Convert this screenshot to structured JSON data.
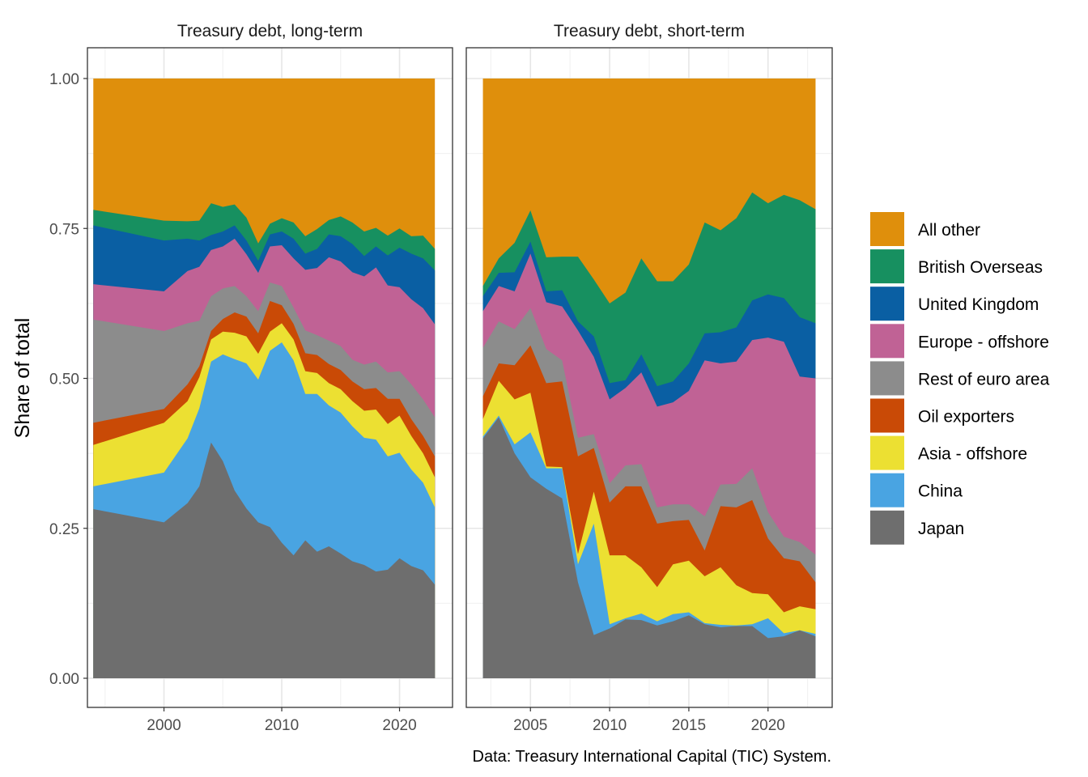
{
  "chart_data": {
    "type": "area",
    "stacked": true,
    "ylabel": "Share of total",
    "xlabel": "",
    "caption": "Data: Treasury International Capital (TIC) System.",
    "legend_position": "right",
    "series_order": [
      "Japan",
      "China",
      "Asia - offshore",
      "Oil exporters",
      "Rest of euro area",
      "Europe - offshore",
      "United Kingdom",
      "British Overseas",
      "All other"
    ],
    "legend_order": [
      "All other",
      "British Overseas",
      "United Kingdom",
      "Europe - offshore",
      "Rest of euro area",
      "Oil exporters",
      "Asia - offshore",
      "China",
      "Japan"
    ],
    "colors": {
      "Japan": "#6e6e6e",
      "China": "#49a4e2",
      "Asia - offshore": "#ece032",
      "Oil exporters": "#c94a06",
      "Rest of euro area": "#8c8c8c",
      "Europe - offshore": "#c06295",
      "United Kingdom": "#0a5fa3",
      "British Overseas": "#179060",
      "All other": "#df8f0c"
    },
    "ylim": [
      0,
      1
    ],
    "yticks": [
      "0.00",
      "0.25",
      "0.50",
      "0.75",
      "1.00"
    ],
    "panels": [
      {
        "title": "Treasury debt, long-term",
        "xlim": [
          1993.5,
          2024.5
        ],
        "xticks": [
          2000,
          2010,
          2020
        ],
        "x": [
          1994,
          2000,
          2002,
          2003,
          2004,
          2005,
          2006,
          2007,
          2008,
          2009,
          2010,
          2011,
          2012,
          2013,
          2014,
          2015,
          2016,
          2017,
          2018,
          2019,
          2020,
          2021,
          2022,
          2023
        ],
        "cumulative": {
          "Japan": [
            0.282,
            0.26,
            0.292,
            0.32,
            0.393,
            0.362,
            0.313,
            0.283,
            0.26,
            0.252,
            0.226,
            0.205,
            0.23,
            0.211,
            0.22,
            0.208,
            0.195,
            0.189,
            0.178,
            0.181,
            0.2,
            0.187,
            0.18,
            0.156
          ],
          "China": [
            0.32,
            0.343,
            0.4,
            0.45,
            0.528,
            0.54,
            0.532,
            0.525,
            0.498,
            0.546,
            0.56,
            0.53,
            0.474,
            0.474,
            0.455,
            0.443,
            0.42,
            0.401,
            0.398,
            0.37,
            0.376,
            0.348,
            0.326,
            0.285
          ],
          "Asia - offshore": [
            0.389,
            0.426,
            0.462,
            0.502,
            0.565,
            0.578,
            0.576,
            0.57,
            0.541,
            0.578,
            0.592,
            0.565,
            0.512,
            0.509,
            0.492,
            0.482,
            0.462,
            0.446,
            0.448,
            0.424,
            0.438,
            0.404,
            0.375,
            0.335
          ],
          "Oil exporters": [
            0.426,
            0.449,
            0.49,
            0.52,
            0.579,
            0.599,
            0.61,
            0.603,
            0.575,
            0.629,
            0.622,
            0.591,
            0.542,
            0.539,
            0.524,
            0.514,
            0.495,
            0.482,
            0.484,
            0.466,
            0.466,
            0.432,
            0.404,
            0.37
          ],
          "Rest of euro area": [
            0.598,
            0.579,
            0.592,
            0.596,
            0.637,
            0.65,
            0.654,
            0.637,
            0.612,
            0.66,
            0.654,
            0.618,
            0.58,
            0.572,
            0.563,
            0.554,
            0.531,
            0.523,
            0.528,
            0.51,
            0.512,
            0.49,
            0.465,
            0.435
          ],
          "Europe - offshore": [
            0.657,
            0.645,
            0.679,
            0.686,
            0.714,
            0.72,
            0.733,
            0.707,
            0.676,
            0.72,
            0.722,
            0.7,
            0.681,
            0.684,
            0.702,
            0.695,
            0.677,
            0.67,
            0.685,
            0.655,
            0.652,
            0.632,
            0.617,
            0.59
          ],
          "United Kingdom": [
            0.755,
            0.73,
            0.733,
            0.73,
            0.739,
            0.745,
            0.755,
            0.73,
            0.696,
            0.74,
            0.745,
            0.733,
            0.708,
            0.716,
            0.74,
            0.737,
            0.724,
            0.704,
            0.72,
            0.705,
            0.718,
            0.708,
            0.7,
            0.68
          ],
          "British Overseas": [
            0.781,
            0.763,
            0.762,
            0.763,
            0.792,
            0.786,
            0.79,
            0.768,
            0.725,
            0.758,
            0.767,
            0.76,
            0.737,
            0.749,
            0.764,
            0.77,
            0.76,
            0.745,
            0.751,
            0.738,
            0.75,
            0.737,
            0.738,
            0.716
          ],
          "All other": [
            1,
            1,
            1,
            1,
            1,
            1,
            1,
            1,
            1,
            1,
            1,
            1,
            1,
            1,
            1,
            1,
            1,
            1,
            1,
            1,
            1,
            1,
            1,
            1
          ]
        }
      },
      {
        "title": "Treasury debt, short-term",
        "xlim": [
          2000.95,
          2024.05
        ],
        "xticks": [
          2005,
          2010,
          2015,
          2020
        ],
        "x": [
          2002,
          2003,
          2004,
          2005,
          2006,
          2007,
          2008,
          2009,
          2010,
          2011,
          2012,
          2013,
          2014,
          2015,
          2016,
          2017,
          2018,
          2019,
          2020,
          2021,
          2022,
          2023
        ],
        "cumulative": {
          "Japan": [
            0.4,
            0.435,
            0.375,
            0.335,
            0.316,
            0.3,
            0.16,
            0.072,
            0.083,
            0.098,
            0.097,
            0.088,
            0.095,
            0.105,
            0.09,
            0.085,
            0.087,
            0.087,
            0.067,
            0.07,
            0.08,
            0.07
          ],
          "China": [
            0.403,
            0.438,
            0.39,
            0.41,
            0.35,
            0.35,
            0.19,
            0.258,
            0.09,
            0.1,
            0.108,
            0.095,
            0.107,
            0.11,
            0.092,
            0.089,
            0.088,
            0.09,
            0.1,
            0.075,
            0.08,
            0.074
          ],
          "Asia - offshore": [
            0.432,
            0.496,
            0.465,
            0.476,
            0.353,
            0.352,
            0.207,
            0.311,
            0.205,
            0.205,
            0.185,
            0.152,
            0.19,
            0.196,
            0.17,
            0.185,
            0.155,
            0.142,
            0.14,
            0.11,
            0.12,
            0.115
          ],
          "Oil exporters": [
            0.47,
            0.525,
            0.522,
            0.555,
            0.492,
            0.495,
            0.37,
            0.384,
            0.293,
            0.32,
            0.32,
            0.258,
            0.262,
            0.264,
            0.213,
            0.287,
            0.285,
            0.297,
            0.233,
            0.2,
            0.195,
            0.16
          ],
          "Rest of euro area": [
            0.551,
            0.595,
            0.582,
            0.617,
            0.549,
            0.53,
            0.401,
            0.407,
            0.325,
            0.355,
            0.357,
            0.285,
            0.29,
            0.29,
            0.27,
            0.323,
            0.324,
            0.35,
            0.277,
            0.236,
            0.227,
            0.206
          ],
          "Europe - offshore": [
            0.612,
            0.654,
            0.645,
            0.708,
            0.627,
            0.62,
            0.58,
            0.536,
            0.465,
            0.484,
            0.51,
            0.453,
            0.46,
            0.479,
            0.53,
            0.525,
            0.528,
            0.564,
            0.568,
            0.561,
            0.503,
            0.5
          ],
          "United Kingdom": [
            0.637,
            0.676,
            0.677,
            0.728,
            0.645,
            0.647,
            0.595,
            0.57,
            0.492,
            0.497,
            0.54,
            0.487,
            0.495,
            0.525,
            0.575,
            0.577,
            0.585,
            0.63,
            0.64,
            0.634,
            0.602,
            0.592
          ],
          "British Overseas": [
            0.654,
            0.7,
            0.726,
            0.78,
            0.702,
            0.703,
            0.703,
            0.665,
            0.625,
            0.643,
            0.7,
            0.662,
            0.662,
            0.69,
            0.76,
            0.747,
            0.767,
            0.81,
            0.792,
            0.806,
            0.797,
            0.782
          ],
          "All other": [
            1,
            1,
            1,
            1,
            1,
            1,
            1,
            1,
            1,
            1,
            1,
            1,
            1,
            1,
            1,
            1,
            1,
            1,
            1,
            1,
            1,
            1
          ]
        }
      }
    ]
  }
}
